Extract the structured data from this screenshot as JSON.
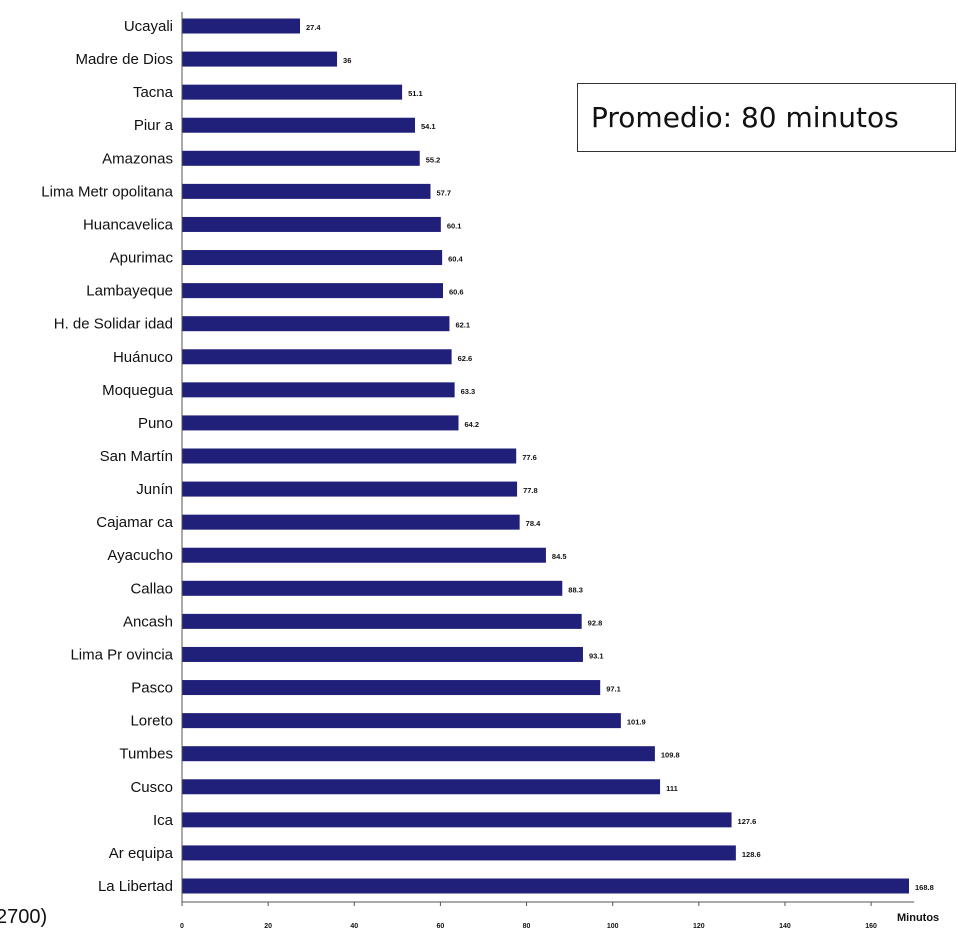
{
  "callout": {
    "text": "Promedio: 80 minutos"
  },
  "cut_text": "2700)",
  "chart_data": {
    "type": "bar",
    "orientation": "horizontal",
    "title": "",
    "xlabel": "Minutos",
    "ylabel": "",
    "xlim": [
      0,
      170
    ],
    "xticks": [
      0,
      20,
      40,
      60,
      80,
      100,
      120,
      140,
      160
    ],
    "grid": false,
    "bar_color": "#20207a",
    "categories": [
      "Ucayali",
      "Madre de Dios",
      "Tacna",
      "Piur a",
      "Amazonas",
      "Lima Metr opolitana",
      "Huancavelica",
      "Apurimac",
      "Lambayeque",
      "H. de Solidar idad",
      "Huánuco",
      "Moquegua",
      "Puno",
      "San Martín",
      "Junín",
      "Cajamar ca",
      "Ayacucho",
      "Callao",
      "Ancash",
      "Lima Pr ovincia",
      "Pasco",
      "Loreto",
      "Tumbes",
      "Cusco",
      "Ica",
      "Ar equipa",
      "La Libertad"
    ],
    "values": [
      27.4,
      36,
      51.1,
      54.1,
      55.2,
      57.7,
      60.1,
      60.4,
      60.6,
      62.1,
      62.6,
      63.3,
      64.2,
      77.6,
      77.8,
      78.4,
      84.5,
      88.3,
      92.8,
      93.1,
      97.1,
      101.9,
      109.8,
      111,
      127.6,
      128.6,
      168.8
    ],
    "value_labels": [
      "27.4",
      "36",
      "51.1",
      "54.1",
      "55.2",
      "57.7",
      "60.1",
      "60.4",
      "60.6",
      "62.1",
      "62.6",
      "63.3",
      "64.2",
      "77.6",
      "77.8",
      "78.4",
      "84.5",
      "88.3",
      "92.8",
      "93.1",
      "97.1",
      "101.9",
      "109.8",
      "111",
      "127.6",
      "128.6",
      "168.8"
    ]
  }
}
